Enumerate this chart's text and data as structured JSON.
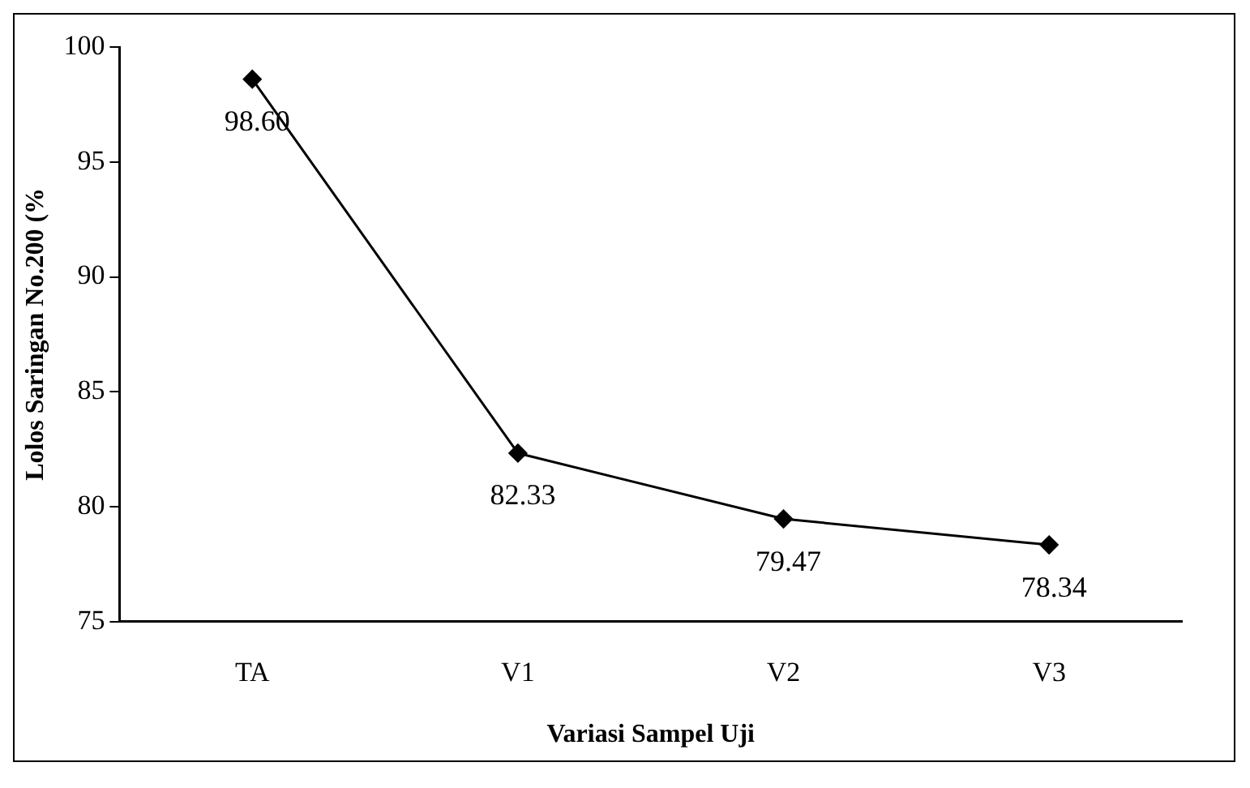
{
  "chart_data": {
    "type": "line",
    "xlabel": "Variasi Sampel Uji",
    "ylabel": "Lolos Saringan No.200 (%",
    "categories": [
      "TA",
      "V1",
      "V2",
      "V3"
    ],
    "series": [
      {
        "color": "#000000",
        "values": [
          98.6,
          82.33,
          79.47,
          78.34
        ],
        "value_labels": [
          "98.60",
          "82.33",
          "79.47",
          "78.34"
        ]
      }
    ],
    "ylim": [
      75,
      100
    ],
    "yticks": [
      75,
      80,
      85,
      90,
      95,
      100
    ],
    "grid": false,
    "legend": false,
    "marker": "diamond",
    "line_style": "solid"
  }
}
